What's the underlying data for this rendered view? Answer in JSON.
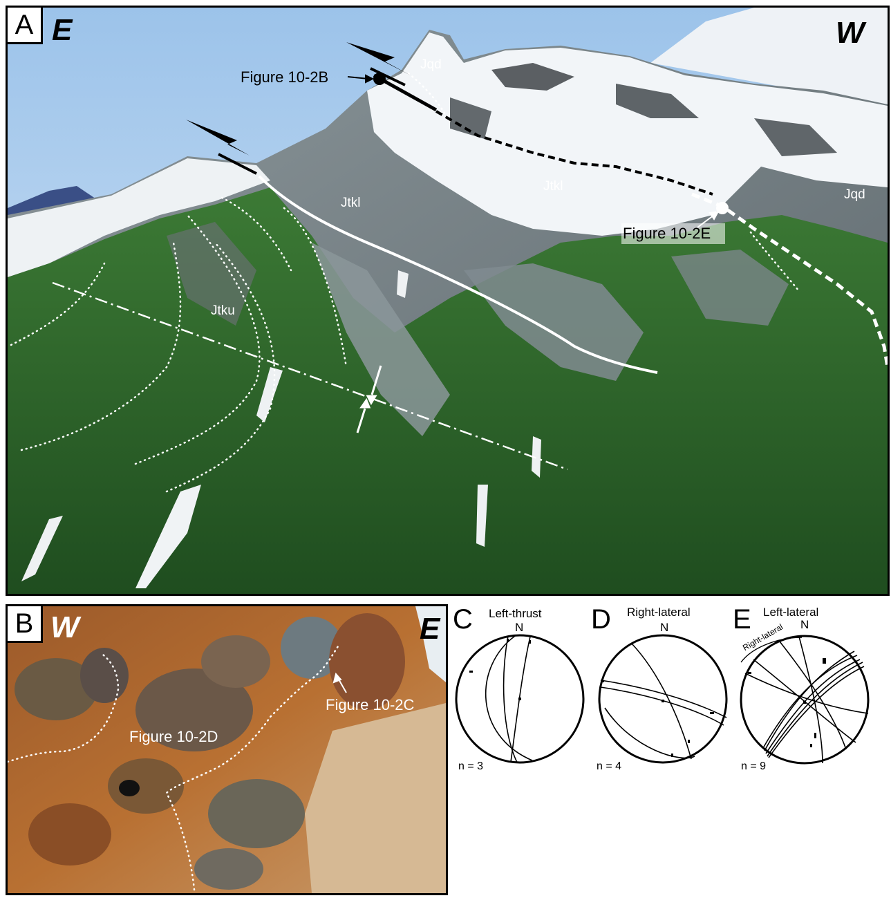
{
  "panel_a": {
    "letter": "A",
    "dir_left": "E",
    "dir_right": "W",
    "callouts": {
      "fig_b": "Figure 10-2B",
      "fig_e": "Figure 10-2E"
    },
    "units": {
      "jqd_top": "Jqd",
      "jqd_right": "Jqd",
      "jtkl_left": "Jtkl",
      "jtkl_center": "Jtkl",
      "jtku": "Jtku"
    }
  },
  "panel_b": {
    "letter": "B",
    "dir_left": "W",
    "dir_right": "E",
    "callouts": {
      "fig_c": "Figure 10-2C",
      "fig_d": "Figure 10-2D"
    }
  },
  "stereonets": [
    {
      "letter": "C",
      "title": "Left-thrust",
      "north": "N",
      "count": "n = 3"
    },
    {
      "letter": "D",
      "title": "Right-lateral",
      "north": "N",
      "count": "n = 4"
    },
    {
      "letter": "E",
      "title": "Left-lateral",
      "north": "N",
      "count": "n = 9",
      "arc_label": "Right-lateral"
    }
  ],
  "colors": {
    "sky": "#bcd6f0",
    "snow": "#f4f6f8",
    "vegetation": "#2f6a2a",
    "rock": "#7f8a8f",
    "outcrop": "#b86a2c"
  }
}
